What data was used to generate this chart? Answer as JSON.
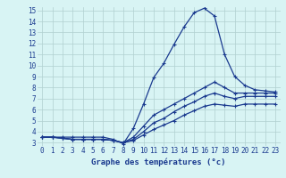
{
  "hours": [
    0,
    1,
    2,
    3,
    4,
    5,
    6,
    7,
    8,
    9,
    10,
    11,
    12,
    13,
    14,
    15,
    16,
    17,
    18,
    19,
    20,
    21,
    22,
    23
  ],
  "temp_actual": [
    3.5,
    3.5,
    3.5,
    3.5,
    3.5,
    3.5,
    3.5,
    3.3,
    2.9,
    4.3,
    6.5,
    8.9,
    10.2,
    11.9,
    13.5,
    14.8,
    15.2,
    14.5,
    11.0,
    9.0,
    8.2,
    7.8,
    7.7,
    7.6
  ],
  "line2": [
    3.5,
    3.5,
    3.4,
    3.3,
    3.3,
    3.3,
    3.3,
    3.2,
    3.0,
    3.5,
    4.5,
    5.5,
    6.0,
    6.5,
    7.0,
    7.5,
    8.0,
    8.5,
    8.0,
    7.5,
    7.5,
    7.5,
    7.5,
    7.5
  ],
  "line3": [
    3.5,
    3.5,
    3.4,
    3.3,
    3.3,
    3.3,
    3.3,
    3.2,
    3.0,
    3.3,
    4.0,
    4.8,
    5.2,
    5.8,
    6.3,
    6.7,
    7.2,
    7.5,
    7.2,
    7.0,
    7.2,
    7.2,
    7.2,
    7.2
  ],
  "line4": [
    3.5,
    3.5,
    3.4,
    3.3,
    3.3,
    3.3,
    3.3,
    3.2,
    3.0,
    3.2,
    3.7,
    4.2,
    4.6,
    5.0,
    5.5,
    5.9,
    6.3,
    6.5,
    6.4,
    6.3,
    6.5,
    6.5,
    6.5,
    6.5
  ],
  "line_color": "#1a3a8f",
  "bg_color": "#d8f4f4",
  "grid_color": "#b0d0d0",
  "ylim_min": 3,
  "ylim_max": 15,
  "yticks": [
    3,
    4,
    5,
    6,
    7,
    8,
    9,
    10,
    11,
    12,
    13,
    14,
    15
  ],
  "xlabel": "Graphe des températures (°c)",
  "tick_fontsize": 5.5,
  "xlabel_fontsize": 6.5
}
